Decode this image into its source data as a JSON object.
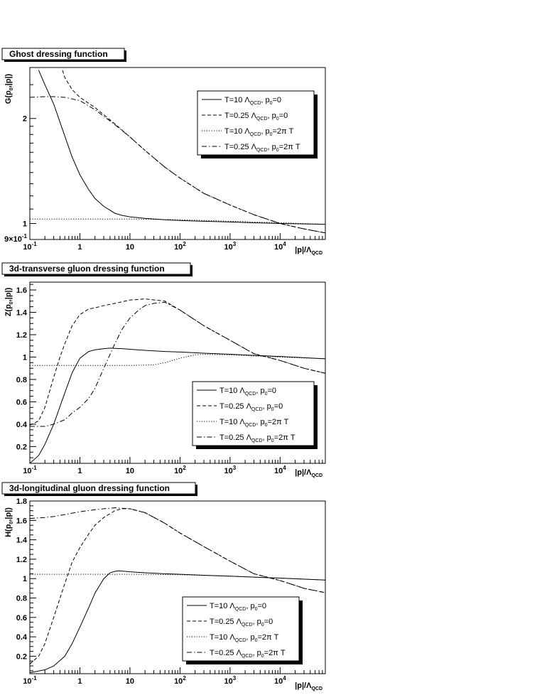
{
  "curve_labels": [
    "T=10 Λ_QCD, p_0=0",
    "T=0.25 Λ_QCD, p_0=0",
    "T=10 Λ_QCD, p_0=2π T",
    "T=0.25 Λ_QCD, p_0=2π T"
  ],
  "chart_data": [
    {
      "type": "line",
      "title": "Ghost dressing function",
      "ylabel": "G(p_0,|p|)",
      "xlabel": "|p|/Λ_QCD",
      "x_scale": "log",
      "y_scale": "log",
      "xlim": [
        0.1,
        80000
      ],
      "ylim": [
        0.9,
        2.8
      ],
      "xticks": [
        0.1,
        1,
        10,
        100,
        1000,
        10000
      ],
      "xtick_labels": [
        "10-1",
        "1",
        "10",
        "102",
        "103",
        "104"
      ],
      "yticks": [
        0.9,
        1,
        2
      ],
      "ytick_labels": [
        "9×10-1",
        "1",
        "2"
      ],
      "legend_position": "top-right",
      "series": [
        {
          "name": "T=10 Λ_QCD, p_0=0",
          "style": "solid",
          "x": [
            0.15,
            0.2,
            0.3,
            0.5,
            0.7,
            1,
            1.5,
            2,
            3,
            5,
            7,
            10,
            20,
            50,
            100,
            300,
            1000,
            3000,
            10000,
            80000
          ],
          "y": [
            2.75,
            2.5,
            2.2,
            1.78,
            1.55,
            1.38,
            1.25,
            1.18,
            1.12,
            1.07,
            1.055,
            1.045,
            1.035,
            1.025,
            1.02,
            1.015,
            1.01,
            1.005,
            1.0,
            0.995
          ]
        },
        {
          "name": "T=0.25 Λ_QCD, p_0=0",
          "style": "dashed",
          "x": [
            0.45,
            0.5,
            0.7,
            1,
            2,
            3,
            5,
            10,
            20,
            50,
            100,
            300,
            1000,
            3000,
            10000,
            30000,
            80000
          ],
          "y": [
            2.75,
            2.62,
            2.42,
            2.3,
            2.15,
            2.05,
            1.93,
            1.77,
            1.62,
            1.45,
            1.35,
            1.22,
            1.13,
            1.06,
            1.0,
            0.965,
            0.94
          ]
        },
        {
          "name": "T=10 Λ_QCD, p_0=2π T",
          "style": "dotted",
          "x": [
            0.1,
            1,
            10,
            100,
            1000,
            10000,
            80000
          ],
          "y": [
            1.03,
            1.03,
            1.03,
            1.025,
            1.015,
            1.005,
            0.995
          ]
        },
        {
          "name": "T=0.25 Λ_QCD, p_0=2π T",
          "style": "dashdot",
          "x": [
            0.1,
            0.2,
            0.3,
            0.5,
            1,
            2,
            3,
            5,
            10,
            20,
            50,
            100,
            300,
            1000,
            3000,
            10000,
            30000,
            80000
          ],
          "y": [
            2.3,
            2.31,
            2.31,
            2.3,
            2.25,
            2.12,
            2.03,
            1.92,
            1.77,
            1.62,
            1.45,
            1.35,
            1.22,
            1.13,
            1.06,
            1.0,
            0.965,
            0.94
          ]
        }
      ]
    },
    {
      "type": "line",
      "title": "3d-transverse gluon dressing function",
      "ylabel": "Z(p_0,|p|)",
      "xlabel": "|p|/Λ_QCD",
      "x_scale": "log",
      "y_scale": "linear",
      "xlim": [
        0.1,
        80000
      ],
      "ylim": [
        0.05,
        1.67
      ],
      "xticks": [
        0.1,
        1,
        10,
        100,
        1000,
        10000
      ],
      "xtick_labels": [
        "10-1",
        "1",
        "10",
        "102",
        "103",
        "104"
      ],
      "yticks": [
        0.2,
        0.4,
        0.6,
        0.8,
        1.0,
        1.2,
        1.4,
        1.6
      ],
      "ytick_labels": [
        "0.2",
        "0.4",
        "0.6",
        "0.8",
        "1",
        "1.2",
        "1.4",
        "1.6"
      ],
      "legend_position": "bottom-right",
      "series": [
        {
          "name": "T=10 Λ_QCD, p_0=0",
          "style": "solid",
          "x": [
            0.1,
            0.15,
            0.2,
            0.3,
            0.5,
            0.7,
            1,
            1.5,
            2,
            3,
            4,
            5,
            7,
            10,
            20,
            50,
            100,
            300,
            1000,
            3000,
            10000,
            80000
          ],
          "y": [
            0.05,
            0.12,
            0.22,
            0.4,
            0.68,
            0.86,
            0.99,
            1.05,
            1.065,
            1.075,
            1.08,
            1.078,
            1.075,
            1.07,
            1.06,
            1.05,
            1.045,
            1.035,
            1.025,
            1.015,
            1.005,
            0.985
          ]
        },
        {
          "name": "T=0.25 Λ_QCD, p_0=0",
          "style": "dashed",
          "x": [
            0.1,
            0.15,
            0.2,
            0.3,
            0.4,
            0.5,
            0.7,
            1,
            1.5,
            2,
            3,
            5,
            10,
            20,
            50,
            100,
            300,
            1000,
            3000,
            10000,
            30000,
            80000
          ],
          "y": [
            0.39,
            0.43,
            0.55,
            0.82,
            1.0,
            1.12,
            1.28,
            1.38,
            1.43,
            1.44,
            1.46,
            1.48,
            1.51,
            1.52,
            1.5,
            1.42,
            1.28,
            1.15,
            1.03,
            0.97,
            0.9,
            0.855
          ]
        },
        {
          "name": "T=10 Λ_QCD, p_0=2π T",
          "style": "dotted",
          "x": [
            0.1,
            1,
            10,
            30,
            50,
            100,
            200,
            300,
            1000,
            3000,
            10000,
            80000
          ],
          "y": [
            0.925,
            0.925,
            0.925,
            0.93,
            0.95,
            0.99,
            1.02,
            1.025,
            1.02,
            1.01,
            1.0,
            0.985
          ]
        },
        {
          "name": "T=0.25 Λ_QCD, p_0=2π T",
          "style": "dashdot",
          "x": [
            0.1,
            0.2,
            0.3,
            0.5,
            0.7,
            1,
            1.5,
            2,
            3,
            5,
            7,
            10,
            15,
            20,
            30,
            50,
            100,
            300,
            1000,
            3000,
            10000,
            30000,
            80000
          ],
          "y": [
            0.38,
            0.38,
            0.4,
            0.44,
            0.5,
            0.55,
            0.63,
            0.72,
            0.9,
            1.12,
            1.25,
            1.35,
            1.42,
            1.46,
            1.48,
            1.49,
            1.42,
            1.28,
            1.15,
            1.03,
            0.97,
            0.9,
            0.855
          ]
        }
      ]
    },
    {
      "type": "line",
      "title": "3d-longitudinal gluon dressing function",
      "ylabel": "H(p_0,|p|)",
      "xlabel": "|p|/Λ_QCD",
      "x_scale": "log",
      "y_scale": "linear",
      "xlim": [
        0.1,
        80000
      ],
      "ylim": [
        0.02,
        1.8
      ],
      "xticks": [
        0.1,
        1,
        10,
        100,
        1000,
        10000
      ],
      "xtick_labels": [
        "10-1",
        "1",
        "10",
        "102",
        "103",
        "104"
      ],
      "yticks": [
        0.2,
        0.4,
        0.6,
        0.8,
        1.0,
        1.2,
        1.4,
        1.6,
        1.8
      ],
      "ytick_labels": [
        "0.2",
        "0.4",
        "0.6",
        "0.8",
        "1",
        "1.2",
        "1.4",
        "1.6",
        "1.8"
      ],
      "legend_position": "bottom-right",
      "series": [
        {
          "name": "T=10 Λ_QCD, p_0=0",
          "style": "solid",
          "x": [
            0.1,
            0.2,
            0.3,
            0.5,
            0.7,
            1,
            1.5,
            2,
            3,
            4,
            5,
            6,
            7,
            10,
            20,
            50,
            100,
            300,
            1000,
            3000,
            10000,
            80000
          ],
          "y": [
            0.03,
            0.06,
            0.1,
            0.2,
            0.33,
            0.5,
            0.7,
            0.85,
            1.0,
            1.06,
            1.075,
            1.08,
            1.078,
            1.07,
            1.06,
            1.05,
            1.045,
            1.035,
            1.025,
            1.015,
            1.005,
            0.985
          ]
        },
        {
          "name": "T=0.25 Λ_QCD, p_0=0",
          "style": "dashed",
          "x": [
            0.1,
            0.15,
            0.2,
            0.3,
            0.5,
            0.7,
            1,
            1.5,
            2,
            3,
            5,
            7,
            10,
            20,
            50,
            100,
            300,
            1000,
            3000,
            10000,
            30000,
            80000
          ],
          "y": [
            0.12,
            0.2,
            0.33,
            0.6,
            0.95,
            1.17,
            1.32,
            1.46,
            1.55,
            1.63,
            1.7,
            1.72,
            1.72,
            1.68,
            1.57,
            1.47,
            1.33,
            1.18,
            1.05,
            0.98,
            0.9,
            0.855
          ]
        },
        {
          "name": "T=10 Λ_QCD, p_0=2π T",
          "style": "dotted",
          "x": [
            0.1,
            1,
            10,
            100,
            1000,
            10000,
            80000
          ],
          "y": [
            1.045,
            1.045,
            1.045,
            1.04,
            1.025,
            1.005,
            0.985
          ]
        },
        {
          "name": "T=0.25 Λ_QCD, p_0=2π T",
          "style": "dashdot",
          "x": [
            0.1,
            0.2,
            0.3,
            0.5,
            1,
            2,
            3,
            5,
            7,
            10,
            20,
            50,
            100,
            300,
            1000,
            3000,
            10000,
            30000,
            80000
          ],
          "y": [
            1.62,
            1.63,
            1.64,
            1.66,
            1.69,
            1.71,
            1.72,
            1.73,
            1.725,
            1.72,
            1.68,
            1.57,
            1.47,
            1.33,
            1.18,
            1.05,
            0.98,
            0.9,
            0.855
          ]
        }
      ]
    }
  ]
}
